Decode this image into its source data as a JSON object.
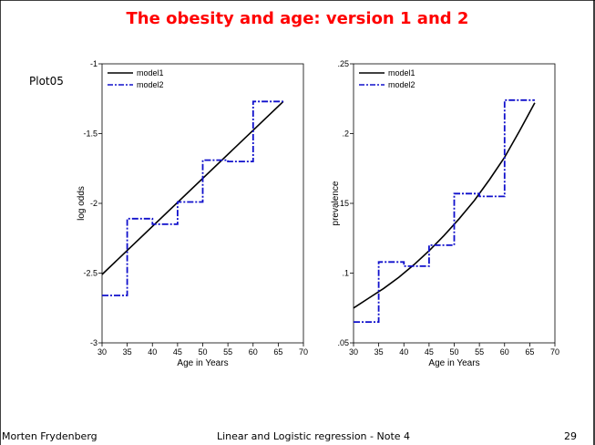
{
  "slide": {
    "title": "The obesity and age: version 1 and 2",
    "plot_label": "Plot05",
    "footer_left": "Morten Frydenberg",
    "footer_center": "Linear and Logistic regression - Note 4",
    "footer_right": "29"
  },
  "colors": {
    "model1": "#000000",
    "model2": "#1010cc",
    "frame": "#000000"
  },
  "chart_data": [
    {
      "type": "line",
      "title": "",
      "xlabel": "Age in Years",
      "ylabel": "log odds",
      "xlim": [
        30,
        70
      ],
      "ylim": [
        -3,
        -1
      ],
      "xticks": [
        30,
        35,
        40,
        45,
        50,
        55,
        60,
        65,
        70
      ],
      "yticks": [
        -3,
        -2.5,
        -2,
        -1.5,
        -1
      ],
      "ytick_labels": [
        "-3",
        "-2.5",
        "-2",
        "-1.5",
        "-1"
      ],
      "legend": "top-left",
      "series": [
        {
          "name": "model1",
          "style": "solid",
          "x": [
            30,
            66
          ],
          "y": [
            -2.51,
            -1.27
          ]
        },
        {
          "name": "model2",
          "style": "dashed",
          "step": true,
          "x": [
            30,
            35,
            35,
            40,
            40,
            45,
            45,
            50,
            50,
            55,
            55,
            60,
            60,
            66
          ],
          "y": [
            -2.66,
            -2.66,
            -2.11,
            -2.11,
            -2.15,
            -2.15,
            -1.99,
            -1.99,
            -1.69,
            -1.69,
            -1.7,
            -1.7,
            -1.27,
            -1.27
          ]
        }
      ]
    },
    {
      "type": "line",
      "title": "",
      "xlabel": "Age in Years",
      "ylabel": "prevalence",
      "xlim": [
        30,
        70
      ],
      "ylim": [
        0.05,
        0.25
      ],
      "xticks": [
        30,
        35,
        40,
        45,
        50,
        55,
        60,
        65,
        70
      ],
      "yticks": [
        0.05,
        0.1,
        0.15,
        0.2,
        0.25
      ],
      "ytick_labels": [
        ".05",
        ".1",
        ".15",
        ".2",
        ".25"
      ],
      "legend": "top-left",
      "series": [
        {
          "name": "model1",
          "style": "solid",
          "x": [
            30,
            33,
            36,
            39,
            42,
            45,
            48,
            51,
            54,
            57,
            60,
            63,
            66
          ],
          "y": [
            0.075,
            0.082,
            0.089,
            0.097,
            0.106,
            0.116,
            0.127,
            0.139,
            0.152,
            0.167,
            0.183,
            0.202,
            0.222
          ]
        },
        {
          "name": "model2",
          "style": "dashed",
          "step": true,
          "x": [
            30,
            35,
            35,
            40,
            40,
            45,
            45,
            50,
            50,
            55,
            55,
            60,
            60,
            66
          ],
          "y": [
            0.065,
            0.065,
            0.108,
            0.108,
            0.105,
            0.105,
            0.12,
            0.12,
            0.157,
            0.157,
            0.155,
            0.155,
            0.224,
            0.224
          ]
        }
      ]
    }
  ]
}
